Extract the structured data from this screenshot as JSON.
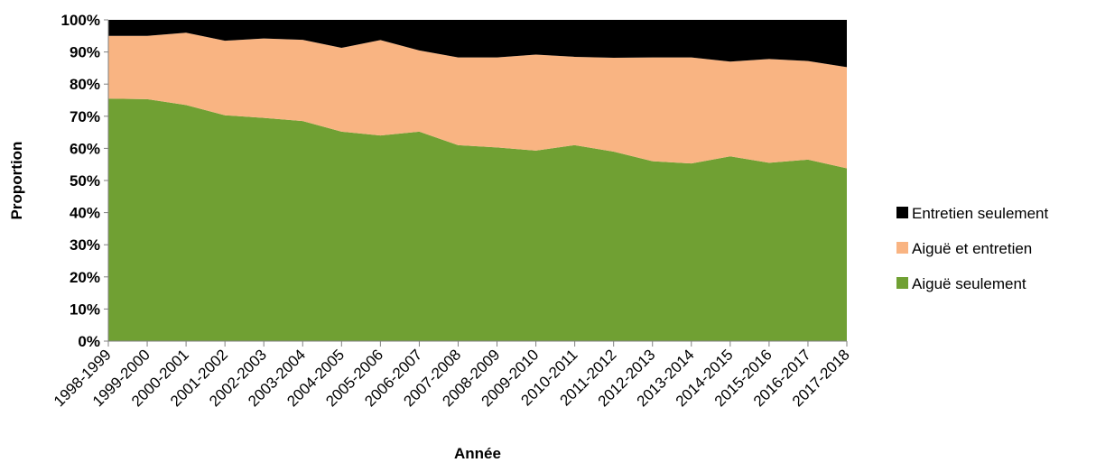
{
  "chart_data": {
    "type": "stacked_area",
    "x_label": "Année",
    "y_label": "Proportion",
    "categories": [
      "1998-1999",
      "1999-2000",
      "2000-2001",
      "2001-2002",
      "2002-2003",
      "2003-2004",
      "2004-2005",
      "2005-2006",
      "2006-2007",
      "2007-2008",
      "2008-2009",
      "2009-2010",
      "2010-2011",
      "2011-2012",
      "2012-2013",
      "2013-2014",
      "2014-2015",
      "2015-2016",
      "2016-2017",
      "2017-2018"
    ],
    "series": [
      {
        "name": "Aiguë seulement",
        "color": "#70a033",
        "values": [
          75.5,
          75.3,
          73.5,
          70.3,
          69.5,
          68.5,
          65.2,
          64,
          65.2,
          61,
          60.3,
          59.3,
          61,
          59,
          56,
          55.3,
          57.5,
          55.5,
          56.5,
          53.8
        ]
      },
      {
        "name": "Aiguë et entretien",
        "color": "#f9b482",
        "values": [
          19.5,
          19.7,
          22.5,
          23.2,
          24.7,
          25.3,
          26.1,
          29.7,
          25.3,
          27.3,
          28,
          29.9,
          27.5,
          29.2,
          32.3,
          33,
          29.5,
          32.3,
          30.7,
          31.5
        ]
      },
      {
        "name": "Entretien seulement",
        "color": "#000000",
        "values": [
          5,
          5,
          4,
          6.5,
          5.8,
          6.2,
          8.7,
          6.3,
          9.5,
          11.7,
          11.7,
          10.8,
          11.5,
          11.8,
          11.7,
          11.7,
          13,
          12.2,
          12.8,
          14.7
        ]
      }
    ],
    "ylim": [
      0,
      100
    ],
    "yticks": [
      {
        "value": 0,
        "label": "0%"
      },
      {
        "value": 10,
        "label": "10%"
      },
      {
        "value": 20,
        "label": "20%"
      },
      {
        "value": 30,
        "label": "30%"
      },
      {
        "value": 40,
        "label": "40%"
      },
      {
        "value": 50,
        "label": "50%"
      },
      {
        "value": 60,
        "label": "60%"
      },
      {
        "value": 70,
        "label": "70%"
      },
      {
        "value": 80,
        "label": "80%"
      },
      {
        "value": 90,
        "label": "90%"
      },
      {
        "value": 100,
        "label": "100%"
      }
    ],
    "legend": "right"
  }
}
